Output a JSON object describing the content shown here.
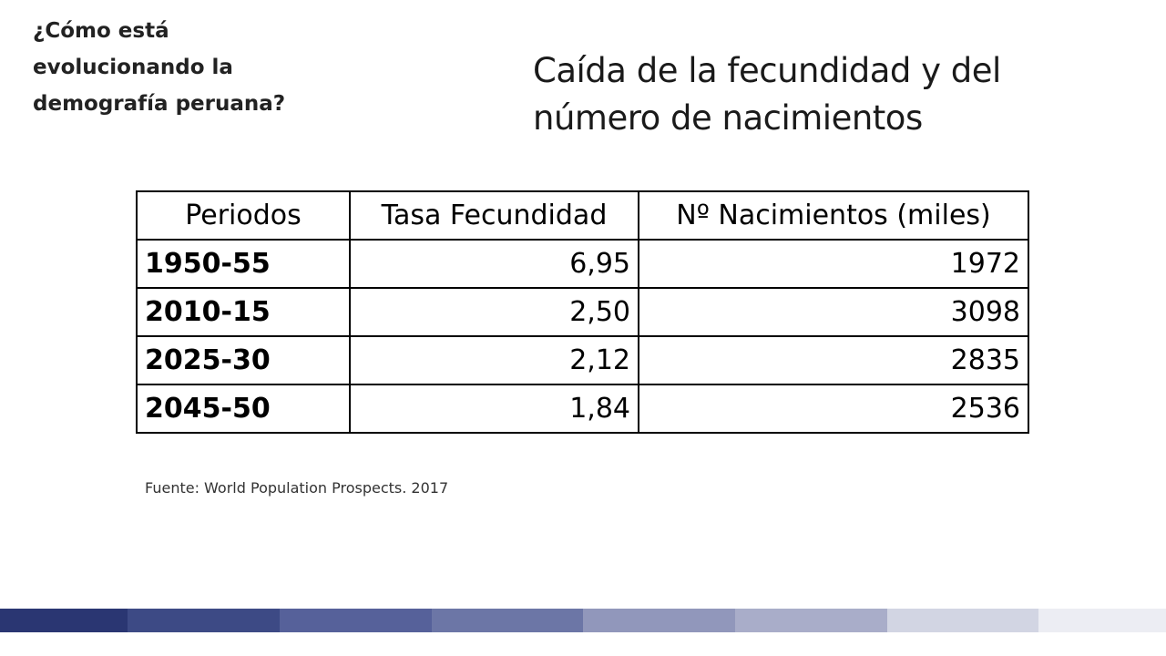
{
  "header": {
    "question": "¿Cómo está evolucionando la demografía peruana?",
    "title": "Caída de la fecundidad y del número de nacimientos"
  },
  "table": {
    "headers": [
      "Periodos",
      "Tasa Fecundidad",
      "Nº Nacimientos (miles)"
    ],
    "rows": [
      {
        "period": "1950-55",
        "fertility": "6,95",
        "births": "1972"
      },
      {
        "period": "2010-15",
        "fertility": "2,50",
        "births": "3098"
      },
      {
        "period": "2025-30",
        "fertility": "2,12",
        "births": "2835"
      },
      {
        "period": "2045-50",
        "fertility": "1,84",
        "births": "2536"
      }
    ]
  },
  "source": "Fuente: World Population Prospects. 2017",
  "footer": {
    "colors": [
      "#2a3672",
      "#3d4a85",
      "#56619a",
      "#6c76a6",
      "#9197bb",
      "#a9adc9",
      "#d2d5e3",
      "#ecedf3"
    ]
  }
}
